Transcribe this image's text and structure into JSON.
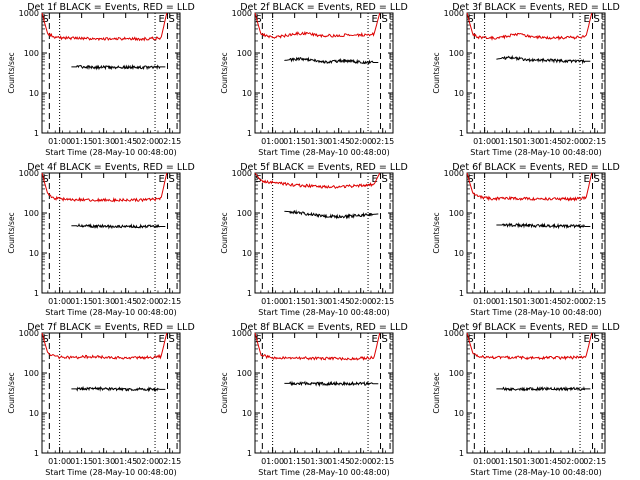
{
  "figure": {
    "x_ticks": [
      "01:00",
      "01:15",
      "01:30",
      "01:45",
      "02:00",
      "02:15"
    ],
    "y_ticks": [
      "1",
      "10",
      "100",
      "1000"
    ],
    "ylabel": "Counts/sec",
    "xlabel": "Start Time (28-May-10 00:48:00)",
    "marker_left": "S",
    "marker_right_e": "E",
    "marker_right_s": "S"
  },
  "chart_data": [
    {
      "id": "det1f",
      "type": "line",
      "title": "Det 1f BLACK = Events, RED = LLD",
      "xlabel": "Start Time (28-May-10 00:48:00)",
      "ylabel": "Counts/sec",
      "yscale": "log",
      "ylim": [
        1,
        1000
      ],
      "xlim_minutes_after_start": [
        0,
        94
      ],
      "series": [
        {
          "name": "RED = LLD",
          "color": "#dd0000",
          "t_start_min": 0,
          "t_end_min": 85,
          "values": [
            1000,
            300,
            260,
            240,
            235,
            235,
            235,
            230,
            230,
            230,
            225,
            225,
            225,
            225,
            225,
            225,
            225,
            225,
            225,
            230,
            230,
            240,
            1000
          ]
        },
        {
          "name": "BLACK = Events",
          "color": "#000000",
          "t_start_min": 20,
          "t_end_min": 84,
          "values": [
            45,
            45,
            45,
            45,
            44,
            44,
            44,
            44,
            44,
            44,
            44,
            44,
            44,
            44,
            44,
            45,
            45,
            45
          ]
        }
      ],
      "vlines_dotted_min": [
        12,
        77
      ],
      "vlines_dashed_min": [
        5,
        85.5,
        92
      ],
      "markers": [
        "S",
        "E",
        "S"
      ]
    },
    {
      "id": "det2f",
      "type": "line",
      "title": "Det 2f BLACK = Events, RED = LLD",
      "xlabel": "Start Time (28-May-10 00:48:00)",
      "ylabel": "Counts/sec",
      "yscale": "log",
      "ylim": [
        1,
        1000
      ],
      "xlim_minutes_after_start": [
        0,
        94
      ],
      "series": [
        {
          "name": "RED = LLD",
          "color": "#dd0000",
          "t_start_min": 0,
          "t_end_min": 85,
          "values": [
            1000,
            310,
            270,
            250,
            250,
            265,
            285,
            300,
            310,
            305,
            295,
            280,
            270,
            270,
            270,
            275,
            280,
            285,
            280,
            285,
            290,
            300,
            1000
          ]
        },
        {
          "name": "BLACK = Events",
          "color": "#000000",
          "t_start_min": 20,
          "t_end_min": 84,
          "values": [
            65,
            68,
            70,
            72,
            70,
            66,
            62,
            60,
            60,
            62,
            64,
            65,
            63,
            60,
            58,
            58,
            58,
            58
          ]
        }
      ],
      "vlines_dotted_min": [
        12,
        77
      ],
      "vlines_dashed_min": [
        5,
        85.5,
        92
      ],
      "markers": [
        "S",
        "E",
        "S"
      ]
    },
    {
      "id": "det3f",
      "type": "line",
      "title": "Det 3f BLACK = Events, RED = LLD",
      "xlabel": "Start Time (28-May-10 00:48:00)",
      "ylabel": "Counts/sec",
      "yscale": "log",
      "ylim": [
        1,
        1000
      ],
      "xlim_minutes_after_start": [
        0,
        94
      ],
      "series": [
        {
          "name": "RED = LLD",
          "color": "#dd0000",
          "t_start_min": 0,
          "t_end_min": 85,
          "values": [
            1000,
            300,
            250,
            240,
            235,
            235,
            245,
            260,
            280,
            290,
            280,
            265,
            250,
            245,
            240,
            240,
            240,
            240,
            245,
            245,
            250,
            265,
            1000
          ]
        },
        {
          "name": "BLACK = Events",
          "color": "#000000",
          "t_start_min": 20,
          "t_end_min": 84,
          "values": [
            70,
            74,
            76,
            76,
            72,
            68,
            66,
            66,
            66,
            66,
            66,
            64,
            63,
            62,
            62,
            62,
            62,
            62
          ]
        }
      ],
      "vlines_dotted_min": [
        12,
        77
      ],
      "vlines_dashed_min": [
        5,
        85.5,
        92
      ],
      "markers": [
        "S",
        "E",
        "S"
      ]
    },
    {
      "id": "det4f",
      "type": "line",
      "title": "Det 4f BLACK = Events, RED = LLD",
      "xlabel": "Start Time (28-May-10 00:48:00)",
      "ylabel": "Counts/sec",
      "yscale": "log",
      "ylim": [
        1,
        1000
      ],
      "xlim_minutes_after_start": [
        0,
        94
      ],
      "series": [
        {
          "name": "RED = LLD",
          "color": "#dd0000",
          "t_start_min": 0,
          "t_end_min": 85,
          "values": [
            1000,
            300,
            240,
            225,
            220,
            220,
            215,
            215,
            215,
            210,
            210,
            210,
            210,
            210,
            210,
            210,
            210,
            210,
            210,
            215,
            220,
            235,
            1000
          ]
        },
        {
          "name": "BLACK = Events",
          "color": "#000000",
          "t_start_min": 20,
          "t_end_min": 84,
          "values": [
            48,
            48,
            48,
            48,
            47,
            47,
            47,
            46,
            46,
            46,
            46,
            46,
            46,
            46,
            46,
            46,
            46,
            46
          ]
        }
      ],
      "vlines_dotted_min": [
        12,
        77
      ],
      "vlines_dashed_min": [
        5,
        85.5,
        92
      ],
      "markers": [
        "S",
        "E",
        "S"
      ]
    },
    {
      "id": "det5f",
      "type": "line",
      "title": "Det 5f BLACK = Events, RED = LLD",
      "xlabel": "Start Time (28-May-10 00:48:00)",
      "ylabel": "Counts/sec",
      "yscale": "log",
      "ylim": [
        1,
        1000
      ],
      "xlim_minutes_after_start": [
        0,
        94
      ],
      "series": [
        {
          "name": "RED = LLD",
          "color": "#dd0000",
          "t_start_min": 0,
          "t_end_min": 85,
          "values": [
            1000,
            650,
            600,
            580,
            560,
            540,
            520,
            500,
            490,
            480,
            470,
            460,
            450,
            450,
            450,
            455,
            460,
            470,
            480,
            490,
            500,
            520,
            1000
          ]
        },
        {
          "name": "BLACK = Events",
          "color": "#000000",
          "t_start_min": 20,
          "t_end_min": 84,
          "values": [
            110,
            108,
            104,
            100,
            96,
            92,
            88,
            86,
            84,
            82,
            82,
            82,
            84,
            86,
            88,
            90,
            92,
            95
          ]
        }
      ],
      "vlines_dotted_min": [
        12,
        77
      ],
      "vlines_dashed_min": [
        5,
        85.5,
        92
      ],
      "markers": [
        "S",
        "E",
        "S"
      ]
    },
    {
      "id": "det6f",
      "type": "line",
      "title": "Det 6f BLACK = Events, RED = LLD",
      "xlabel": "Start Time (28-May-10 00:48:00)",
      "ylabel": "Counts/sec",
      "yscale": "log",
      "ylim": [
        1,
        1000
      ],
      "xlim_minutes_after_start": [
        0,
        94
      ],
      "series": [
        {
          "name": "RED = LLD",
          "color": "#dd0000",
          "t_start_min": 0,
          "t_end_min": 85,
          "values": [
            1000,
            320,
            260,
            240,
            230,
            230,
            230,
            230,
            230,
            230,
            228,
            226,
            225,
            225,
            225,
            225,
            225,
            225,
            225,
            225,
            230,
            240,
            1000
          ]
        },
        {
          "name": "BLACK = Events",
          "color": "#000000",
          "t_start_min": 20,
          "t_end_min": 84,
          "values": [
            50,
            50,
            50,
            50,
            49,
            49,
            49,
            48,
            48,
            48,
            48,
            47,
            47,
            47,
            47,
            46,
            46,
            46
          ]
        }
      ],
      "vlines_dotted_min": [
        12,
        77
      ],
      "vlines_dashed_min": [
        5,
        85.5,
        92
      ],
      "markers": [
        "S",
        "E",
        "S"
      ]
    },
    {
      "id": "det7f",
      "type": "line",
      "title": "Det 7f BLACK = Events, RED = LLD",
      "xlabel": "Start Time (28-May-10 00:48:00)",
      "ylabel": "Counts/sec",
      "yscale": "log",
      "ylim": [
        1,
        1000
      ],
      "xlim_minutes_after_start": [
        0,
        94
      ],
      "series": [
        {
          "name": "RED = LLD",
          "color": "#dd0000",
          "t_start_min": 0,
          "t_end_min": 85,
          "values": [
            1000,
            320,
            270,
            250,
            245,
            245,
            245,
            250,
            255,
            255,
            250,
            245,
            240,
            240,
            240,
            240,
            240,
            240,
            240,
            245,
            250,
            260,
            1000
          ]
        },
        {
          "name": "BLACK = Events",
          "color": "#000000",
          "t_start_min": 20,
          "t_end_min": 84,
          "values": [
            40,
            40,
            40,
            41,
            41,
            41,
            40,
            40,
            40,
            40,
            39,
            39,
            39,
            39,
            39,
            39,
            39,
            39
          ]
        }
      ],
      "vlines_dotted_min": [
        12,
        77
      ],
      "vlines_dashed_min": [
        5,
        85.5,
        92
      ],
      "markers": [
        "S",
        "E",
        "S"
      ]
    },
    {
      "id": "det8f",
      "type": "line",
      "title": "Det 8f BLACK = Events, RED = LLD",
      "xlabel": "Start Time (28-May-10 00:48:00)",
      "ylabel": "Counts/sec",
      "yscale": "log",
      "ylim": [
        1,
        1000
      ],
      "xlim_minutes_after_start": [
        0,
        94
      ],
      "series": [
        {
          "name": "RED = LLD",
          "color": "#dd0000",
          "t_start_min": 0,
          "t_end_min": 85,
          "values": [
            1000,
            300,
            260,
            240,
            235,
            235,
            235,
            235,
            235,
            235,
            232,
            230,
            230,
            230,
            230,
            230,
            230,
            230,
            230,
            235,
            240,
            250,
            1000
          ]
        },
        {
          "name": "BLACK = Events",
          "color": "#000000",
          "t_start_min": 20,
          "t_end_min": 84,
          "values": [
            55,
            55,
            55,
            55,
            55,
            54,
            54,
            54,
            54,
            54,
            54,
            54,
            54,
            54,
            54,
            54,
            54,
            54
          ]
        }
      ],
      "vlines_dotted_min": [
        12,
        77
      ],
      "vlines_dashed_min": [
        5,
        85.5,
        92
      ],
      "markers": [
        "S",
        "E",
        "S"
      ]
    },
    {
      "id": "det9f",
      "type": "line",
      "title": "Det 9f BLACK = Events, RED = LLD",
      "xlabel": "Start Time (28-May-10 00:48:00)",
      "ylabel": "Counts/sec",
      "yscale": "log",
      "ylim": [
        1,
        1000
      ],
      "xlim_minutes_after_start": [
        0,
        94
      ],
      "series": [
        {
          "name": "RED = LLD",
          "color": "#dd0000",
          "t_start_min": 0,
          "t_end_min": 85,
          "values": [
            1000,
            320,
            270,
            250,
            245,
            245,
            245,
            245,
            245,
            245,
            242,
            240,
            240,
            240,
            240,
            240,
            240,
            240,
            240,
            245,
            250,
            265,
            1000
          ]
        },
        {
          "name": "BLACK = Events",
          "color": "#000000",
          "t_start_min": 20,
          "t_end_min": 84,
          "values": [
            40,
            40,
            40,
            40,
            40,
            40,
            40,
            40,
            40,
            40,
            40,
            40,
            40,
            40,
            40,
            40,
            40,
            40
          ]
        }
      ],
      "vlines_dotted_min": [
        12,
        77
      ],
      "vlines_dashed_min": [
        5,
        85.5,
        92
      ],
      "markers": [
        "S",
        "E",
        "S"
      ]
    }
  ]
}
